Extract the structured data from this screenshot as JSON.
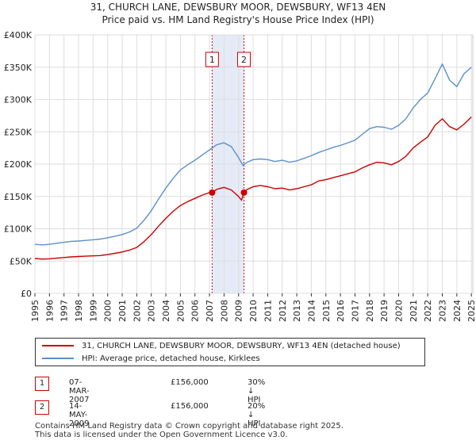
{
  "chart_data": {
    "type": "line",
    "title": "31, CHURCH LANE, DEWSBURY MOOR, DEWSBURY, WF13 4EN",
    "subtitle": "Price paid vs. HM Land Registry's House Price Index (HPI)",
    "xlabel": "",
    "ylabel": "",
    "xlim": [
      1995,
      2025.1
    ],
    "ylim": [
      0,
      400000
    ],
    "x_ticks": [
      "1995",
      "1996",
      "1997",
      "1998",
      "1999",
      "2000",
      "2001",
      "2002",
      "2003",
      "2004",
      "2005",
      "2006",
      "2007",
      "2008",
      "2009",
      "2010",
      "2011",
      "2012",
      "2013",
      "2014",
      "2015",
      "2016",
      "2017",
      "2018",
      "2019",
      "2020",
      "2021",
      "2022",
      "2023",
      "2024",
      "2025"
    ],
    "y_ticks": [
      {
        "value": 0,
        "label": "£0"
      },
      {
        "value": 50000,
        "label": "£50K"
      },
      {
        "value": 100000,
        "label": "£100K"
      },
      {
        "value": 150000,
        "label": "£150K"
      },
      {
        "value": 200000,
        "label": "£200K"
      },
      {
        "value": 250000,
        "label": "£250K"
      },
      {
        "value": 300000,
        "label": "£300K"
      },
      {
        "value": 350000,
        "label": "£350K"
      },
      {
        "value": 400000,
        "label": "£400K"
      }
    ],
    "grid": true,
    "shaded_period": {
      "start": 2007.18,
      "end": 2009.37
    },
    "series": [
      {
        "name": "31, CHURCH LANE, DEWSBURY MOOR, DEWSBURY, WF13 4EN (detached house)",
        "color": "#cc0000",
        "x": [
          1995.0,
          1995.5,
          1996.0,
          1996.5,
          1997.0,
          1997.5,
          1998.0,
          1998.5,
          1999.0,
          1999.5,
          2000.0,
          2000.5,
          2001.0,
          2001.5,
          2002.0,
          2002.5,
          2003.0,
          2003.5,
          2004.0,
          2004.5,
          2005.0,
          2005.5,
          2006.0,
          2006.5,
          2007.0,
          2007.18,
          2007.5,
          2008.0,
          2008.5,
          2009.0,
          2009.2,
          2009.37,
          2009.6,
          2010.0,
          2010.5,
          2011.0,
          2011.5,
          2012.0,
          2012.5,
          2013.0,
          2013.5,
          2014.0,
          2014.5,
          2015.0,
          2015.5,
          2016.0,
          2016.5,
          2017.0,
          2017.5,
          2018.0,
          2018.5,
          2019.0,
          2019.5,
          2020.0,
          2020.5,
          2021.0,
          2021.5,
          2022.0,
          2022.5,
          2023.0,
          2023.5,
          2024.0,
          2024.5,
          2025.0
        ],
        "y": [
          54000,
          53000,
          53500,
          54500,
          55500,
          56500,
          57000,
          57500,
          58000,
          58500,
          60000,
          62000,
          64000,
          67000,
          71000,
          80000,
          91000,
          104000,
          116000,
          127000,
          136000,
          142000,
          147000,
          152000,
          156000,
          156000,
          161000,
          164000,
          160000,
          150000,
          144000,
          156000,
          161000,
          165000,
          167000,
          165000,
          162000,
          163000,
          160000,
          162000,
          165000,
          168000,
          174000,
          176000,
          179000,
          182000,
          185000,
          188000,
          194000,
          199000,
          203000,
          202000,
          199000,
          204000,
          212000,
          225000,
          234000,
          242000,
          260000,
          270000,
          258000,
          253000,
          262000,
          273000
        ]
      },
      {
        "name": "HPI: Average price, detached house, Kirklees",
        "color": "#5b8fc9",
        "x": [
          1995.0,
          1995.5,
          1996.0,
          1996.5,
          1997.0,
          1997.5,
          1998.0,
          1998.5,
          1999.0,
          1999.5,
          2000.0,
          2000.5,
          2001.0,
          2001.5,
          2002.0,
          2002.5,
          2003.0,
          2003.5,
          2004.0,
          2004.5,
          2005.0,
          2005.5,
          2006.0,
          2006.5,
          2007.0,
          2007.5,
          2008.0,
          2008.5,
          2009.0,
          2009.3,
          2009.6,
          2010.0,
          2010.5,
          2011.0,
          2011.5,
          2012.0,
          2012.5,
          2013.0,
          2013.5,
          2014.0,
          2014.5,
          2015.0,
          2015.5,
          2016.0,
          2016.5,
          2017.0,
          2017.5,
          2018.0,
          2018.5,
          2019.0,
          2019.5,
          2020.0,
          2020.5,
          2021.0,
          2021.5,
          2022.0,
          2022.5,
          2023.0,
          2023.5,
          2024.0,
          2024.5,
          2025.0
        ],
        "y": [
          76000,
          75000,
          76000,
          77500,
          79000,
          80500,
          81000,
          82000,
          83000,
          84000,
          86000,
          88500,
          91000,
          95000,
          101000,
          113000,
          128000,
          146000,
          163000,
          178000,
          191000,
          199000,
          206000,
          214000,
          222000,
          230000,
          233000,
          227000,
          210000,
          198000,
          203000,
          207000,
          208000,
          207000,
          204000,
          206000,
          203000,
          205000,
          209000,
          213000,
          218000,
          222000,
          226000,
          229000,
          233000,
          237000,
          246000,
          255000,
          258000,
          257000,
          254000,
          260000,
          270000,
          287000,
          300000,
          310000,
          332000,
          355000,
          330000,
          320000,
          340000,
          350000
        ]
      }
    ],
    "markers": [
      {
        "label": "1",
        "x": 2007.18,
        "y": 156000
      },
      {
        "label": "2",
        "x": 2009.37,
        "y": 156000
      }
    ]
  },
  "legend": {
    "property_label": "31, CHURCH LANE, DEWSBURY MOOR, DEWSBURY, WF13 4EN (detached house)",
    "hpi_label": "HPI: Average price, detached house, Kirklees",
    "property_color": "#cc0000",
    "hpi_color": "#5b8fc9"
  },
  "transactions": [
    {
      "num": "1",
      "date": "07-MAR-2007",
      "price": "£156,000",
      "hpi": "30% ↓ HPI"
    },
    {
      "num": "2",
      "date": "14-MAY-2009",
      "price": "£156,000",
      "hpi": "20% ↓ HPI"
    }
  ],
  "footer": {
    "line1": "Contains HM Land Registry data © Crown copyright and database right 2025.",
    "line2": "This data is licensed under the Open Government Licence v3.0."
  }
}
